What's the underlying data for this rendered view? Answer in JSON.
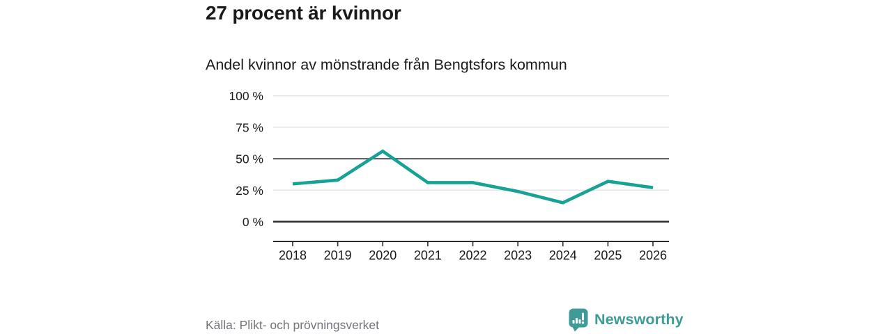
{
  "header": {
    "title": "27 procent är kvinnor",
    "subtitle": "Andel kvinnor av mönstrande från Bengtsfors kommun"
  },
  "chart_data": {
    "type": "line",
    "title": "27 procent är kvinnor",
    "subtitle": "Andel kvinnor av mönstrande från Bengtsfors kommun",
    "series_name": "Andel kvinnor av mönstrande",
    "categories": [
      "2018",
      "2019",
      "2020",
      "2021",
      "2022",
      "2023",
      "2024",
      "2025",
      "2026"
    ],
    "values": [
      30,
      33,
      56,
      31,
      31,
      24,
      15,
      32,
      27
    ],
    "unit": "%",
    "ylim": [
      0,
      100
    ],
    "yticks": [
      {
        "value": 0,
        "label": "0 %",
        "line": "axis"
      },
      {
        "value": 25,
        "label": "25 %",
        "line": "light"
      },
      {
        "value": 50,
        "label": "50 %",
        "line": "mid"
      },
      {
        "value": 75,
        "label": "75 %",
        "line": "light"
      },
      {
        "value": 100,
        "label": "100 %",
        "line": "light"
      }
    ],
    "grid": true,
    "legend": "none"
  },
  "palette": {
    "accent": "#17a295",
    "grid_light": "#e4e4e4",
    "grid_mid": "#54565e",
    "axis_dark": "#2b2b2b",
    "text_dark": "#1a1a1a",
    "text_gray": "#72757a",
    "logo_teal": "#3f9b97"
  },
  "footer": {
    "source": "Källa: Plikt- och prövningsverket",
    "brand": "Newsworthy"
  }
}
